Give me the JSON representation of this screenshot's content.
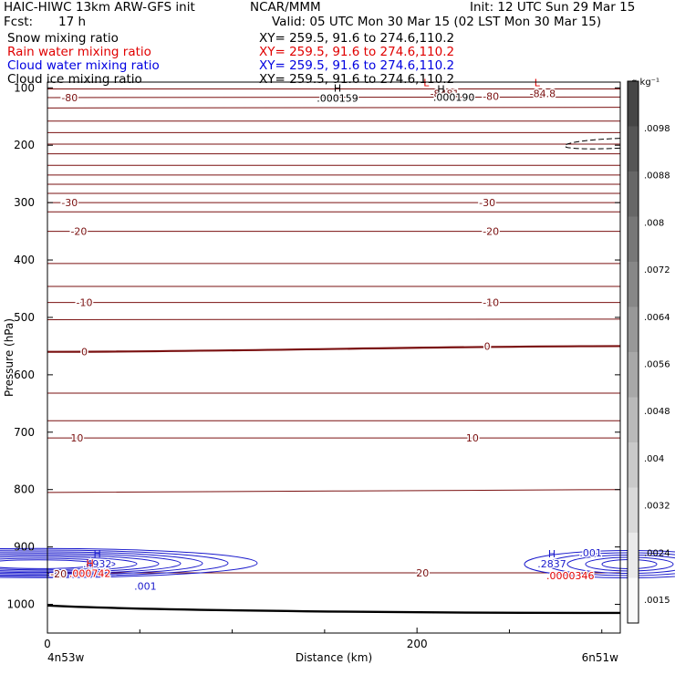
{
  "header": {
    "title_left": "HAIC-HIWC 13km ARW-GFS init",
    "center": "NCAR/MMM",
    "init": "Init: 12 UTC Sun 29 Mar 15",
    "fcst_label": "Fcst:",
    "fcst_value": "17 h",
    "valid": "Valid: 05 UTC Mon 30 Mar 15 (02 LST Mon 30 Mar 15)",
    "fields": [
      {
        "name": "Snow mixing ratio",
        "xy": "XY= 259.5, 91.6 to 274.6,110.2",
        "color": "#000000"
      },
      {
        "name": "Rain water mixing ratio",
        "xy": "XY= 259.5, 91.6 to 274.6,110.2",
        "color": "#e00000"
      },
      {
        "name": "Cloud water mixing ratio",
        "xy": "XY= 259.5, 91.6 to 274.6,110.2",
        "color": "#0000e0"
      },
      {
        "name": "Cloud ice mixing ratio",
        "xy": "XY= 259.5, 91.6 to 274.6,110.2",
        "color": "#000000"
      }
    ]
  },
  "colors": {
    "temperature": "#7a1010",
    "rain": "#e00000",
    "cloud_water": "#1a1acc",
    "ice": "#000000"
  },
  "chart_data": {
    "type": "contour",
    "xlabel": "Distance (km)",
    "ylabel": "Pressure (hPa)",
    "xlim": [
      0,
      310
    ],
    "ylim": [
      1050,
      90
    ],
    "x_ticks": [
      0,
      200
    ],
    "x_tick_labels": [
      "0",
      "200"
    ],
    "y_ticks": [
      100,
      200,
      300,
      400,
      500,
      600,
      700,
      800,
      900,
      1000
    ],
    "x_endpoint_labels": [
      "4n53w",
      "6n51w"
    ],
    "temperature_contours": [
      {
        "p_left": 102,
        "p_right": 102,
        "label": "",
        "bold": false
      },
      {
        "p_left": 117,
        "p_right": 116,
        "label": "-80",
        "bold": false
      },
      {
        "p_left": 135,
        "p_right": 134,
        "label": "",
        "bold": false
      },
      {
        "p_left": 158,
        "p_right": 158,
        "label": "",
        "bold": false
      },
      {
        "p_left": 178,
        "p_right": 178,
        "label": "",
        "bold": false
      },
      {
        "p_left": 198,
        "p_right": 198,
        "label": "",
        "bold": false
      },
      {
        "p_left": 215,
        "p_right": 215,
        "label": "",
        "bold": false
      },
      {
        "p_left": 235,
        "p_right": 235,
        "label": "",
        "bold": false
      },
      {
        "p_left": 252,
        "p_right": 252,
        "label": "",
        "bold": false
      },
      {
        "p_left": 268,
        "p_right": 268,
        "label": "",
        "bold": false
      },
      {
        "p_left": 284,
        "p_right": 284,
        "label": "",
        "bold": false
      },
      {
        "p_left": 300,
        "p_right": 300,
        "label": "-30",
        "bold": false
      },
      {
        "p_left": 316,
        "p_right": 316,
        "label": "",
        "bold": false
      },
      {
        "p_left": 350,
        "p_right": 350,
        "label": "-20",
        "bold": false
      },
      {
        "p_left": 406,
        "p_right": 406,
        "label": "",
        "bold": false
      },
      {
        "p_left": 446,
        "p_right": 446,
        "label": "",
        "bold": false
      },
      {
        "p_left": 474,
        "p_right": 474,
        "label": "-10",
        "bold": false
      },
      {
        "p_left": 504,
        "p_right": 503,
        "label": "",
        "bold": false
      },
      {
        "p_left": 560,
        "p_right": 550,
        "label": "0",
        "bold": true
      },
      {
        "p_left": 632,
        "p_right": 632,
        "label": "",
        "bold": false
      },
      {
        "p_left": 680,
        "p_right": 680,
        "label": "",
        "bold": false
      },
      {
        "p_left": 710,
        "p_right": 710,
        "label": "10",
        "bold": false
      },
      {
        "p_left": 805,
        "p_right": 800,
        "label": "",
        "bold": false
      },
      {
        "p_left": 945,
        "p_right": 945,
        "label": "20",
        "bold": false
      }
    ],
    "temperature_labels": [
      {
        "text": "-80",
        "x": 12,
        "p": 117
      },
      {
        "text": "-8481",
        "x": 215,
        "p": 110
      },
      {
        "text": "-80",
        "x": 240,
        "p": 115
      },
      {
        "text": "-84.8",
        "x": 268,
        "p": 110
      },
      {
        "text": "-30",
        "x": 12,
        "p": 300
      },
      {
        "text": "-30",
        "x": 238,
        "p": 300
      },
      {
        "text": "-20",
        "x": 17,
        "p": 350
      },
      {
        "text": "-20",
        "x": 240,
        "p": 350
      },
      {
        "text": "-10",
        "x": 20,
        "p": 474
      },
      {
        "text": "-10",
        "x": 240,
        "p": 474
      },
      {
        "text": "0",
        "x": 20,
        "p": 560
      },
      {
        "text": "0",
        "x": 238,
        "p": 550
      },
      {
        "text": "10",
        "x": 16,
        "p": 710
      },
      {
        "text": "10",
        "x": 230,
        "p": 710
      },
      {
        "text": "20",
        "x": 203,
        "p": 945
      },
      {
        "text": "-20",
        "x": 6,
        "p": 947
      }
    ],
    "ground": {
      "p_left": 1002,
      "p_right": 1015
    },
    "extrema": [
      {
        "kind": "H",
        "x": 157,
        "p": 107,
        "value": ".000159",
        "color": "ice"
      },
      {
        "kind": "L",
        "x": 205,
        "p": 97,
        "value": "",
        "color": "rain"
      },
      {
        "kind": "H",
        "x": 213,
        "p": 108,
        "value": "",
        "color": "ice"
      },
      {
        "kind": "",
        "x": 220,
        "p": 116,
        "value": ".000190",
        "color": "ice"
      },
      {
        "kind": "L",
        "x": 265,
        "p": 97,
        "value": "",
        "color": "rain"
      },
      {
        "kind": "H",
        "x": 27,
        "p": 918,
        "value": ".4932",
        "color": "cloud_water"
      },
      {
        "kind": "H",
        "x": 23,
        "p": 935,
        "value": ".000742",
        "color": "rain"
      },
      {
        "kind": "",
        "x": 53,
        "p": 968,
        "value": ".001",
        "color": "cloud_water"
      },
      {
        "kind": "H",
        "x": 273,
        "p": 918,
        "value": ".2837",
        "color": "cloud_water"
      },
      {
        "kind": "",
        "x": 294,
        "p": 910,
        "value": ".001",
        "color": "cloud_water"
      },
      {
        "kind": "",
        "x": 283,
        "p": 950,
        "value": ".0000346",
        "color": "rain"
      }
    ],
    "colorbar": {
      "unit": "g kg⁻¹",
      "tick_labels": [
        ".0098",
        ".0088",
        ".008",
        ".0072",
        ".0064",
        ".0056",
        ".0048",
        ".004",
        ".0032",
        ".0024",
        ".0015"
      ]
    }
  }
}
